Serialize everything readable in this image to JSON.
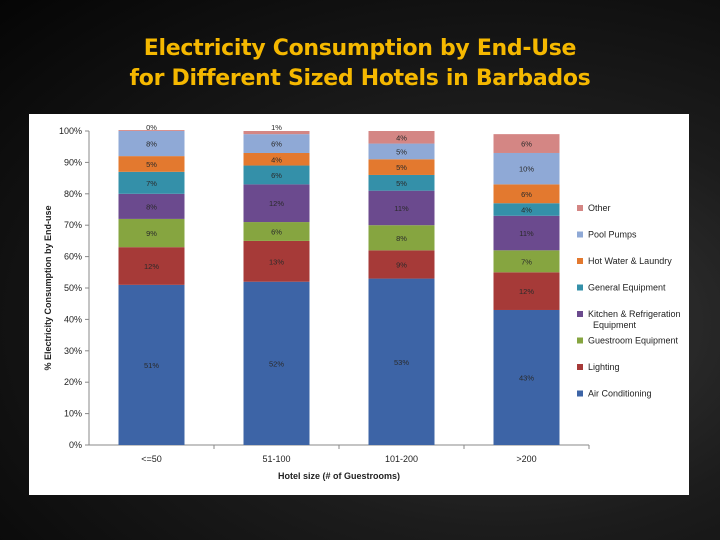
{
  "title": {
    "line1": "Electricity Consumption by End-Use",
    "line2": "for Different Sized Hotels in Barbados"
  },
  "chart_data": {
    "type": "bar",
    "stacked": true,
    "title": "",
    "xlabel": "Hotel size (# of Guestrooms)",
    "ylabel": "% Electricity Consumption by End-use",
    "ylim": [
      0,
      100
    ],
    "yticks": [
      "0%",
      "10%",
      "20%",
      "30%",
      "40%",
      "50%",
      "60%",
      "70%",
      "80%",
      "90%",
      "100%"
    ],
    "categories": [
      "<=50",
      "51-100",
      "101-200",
      ">200"
    ],
    "legend_position": "right",
    "grid": false,
    "series": [
      {
        "name": "Air Conditioning",
        "color": "#3d64a6",
        "values": [
          51,
          52,
          53,
          43
        ],
        "labels": [
          "51%",
          "52%",
          "53%",
          "43%"
        ]
      },
      {
        "name": "Lighting",
        "color": "#a63a38",
        "values": [
          12,
          13,
          9,
          12
        ],
        "labels": [
          "12%",
          "13%",
          "9%",
          "12%"
        ]
      },
      {
        "name": "Guestroom Equipment",
        "color": "#86a540",
        "values": [
          9,
          6,
          8,
          7
        ],
        "labels": [
          "9%",
          "6%",
          "8%",
          "7%"
        ]
      },
      {
        "name": "Kitchen & Refrigeration Equipment",
        "color": "#6b4a8e",
        "values": [
          8,
          12,
          11,
          11
        ],
        "labels": [
          "8%",
          "12%",
          "11%",
          "11%"
        ]
      },
      {
        "name": "General Equipment",
        "color": "#3490a9",
        "values": [
          7,
          6,
          5,
          4
        ],
        "labels": [
          "7%",
          "6%",
          "5%",
          "4%"
        ]
      },
      {
        "name": "Hot Water & Laundry",
        "color": "#e3792f",
        "values": [
          5,
          4,
          5,
          6
        ],
        "labels": [
          "5%",
          "4%",
          "5%",
          "6%"
        ]
      },
      {
        "name": "Pool Pumps",
        "color": "#8fa9d6",
        "values": [
          8,
          6,
          5,
          10
        ],
        "labels": [
          "8%",
          "6%",
          "5%",
          "10%"
        ]
      },
      {
        "name": "Other",
        "color": "#d48684",
        "values": [
          0,
          1,
          4,
          6
        ],
        "labels": [
          "0%",
          "1%",
          "4%",
          "6%"
        ]
      }
    ],
    "legend_order": [
      "Other",
      "Pool Pumps",
      "Hot Water & Laundry",
      "General Equipment",
      "Kitchen & Refrigeration Equipment",
      "Guestroom Equipment",
      "Lighting",
      "Air Conditioning"
    ]
  }
}
